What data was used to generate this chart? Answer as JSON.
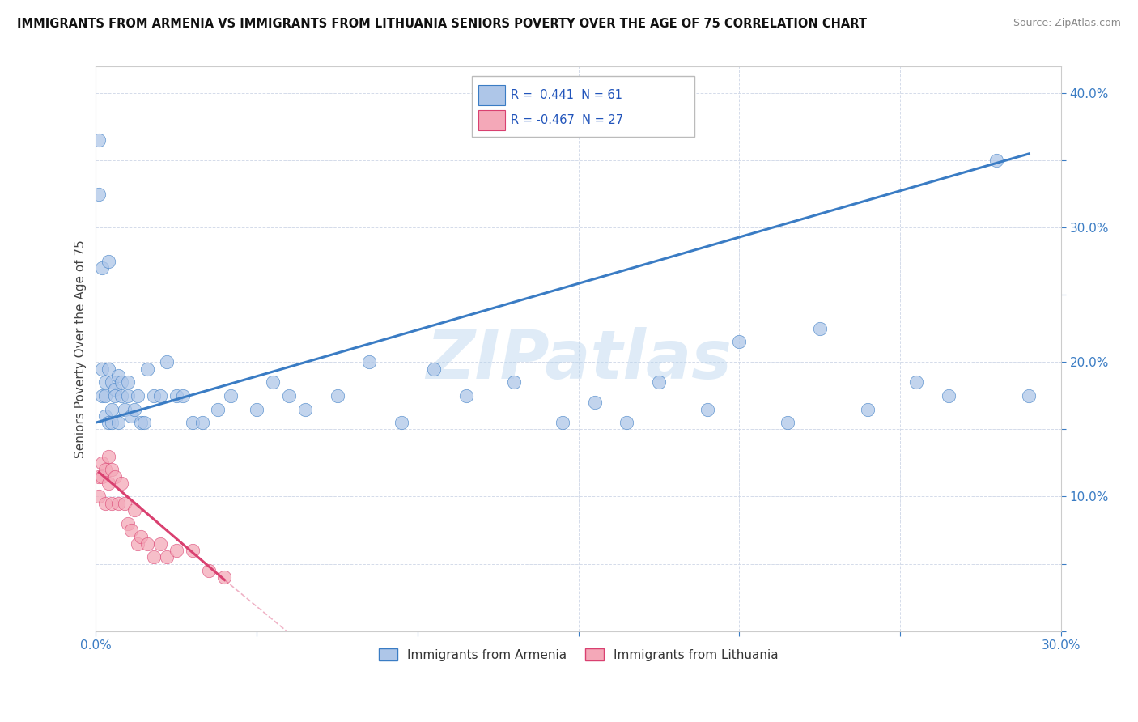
{
  "title": "IMMIGRANTS FROM ARMENIA VS IMMIGRANTS FROM LITHUANIA SENIORS POVERTY OVER THE AGE OF 75 CORRELATION CHART",
  "source": "Source: ZipAtlas.com",
  "ylabel": "Seniors Poverty Over the Age of 75",
  "watermark": "ZIPatlas",
  "legend_armenia": "Immigrants from Armenia",
  "legend_lithuania": "Immigrants from Lithuania",
  "R_armenia": 0.441,
  "N_armenia": 61,
  "R_lithuania": -0.467,
  "N_lithuania": 27,
  "xlim": [
    0.0,
    0.3
  ],
  "ylim": [
    0.0,
    0.42
  ],
  "color_armenia": "#aec6e8",
  "color_lithuania": "#f4a8b8",
  "line_color_armenia": "#3a7cc4",
  "line_color_lithuania": "#d94070",
  "background_color": "#ffffff",
  "armenia_x": [
    0.001,
    0.001,
    0.002,
    0.002,
    0.002,
    0.003,
    0.003,
    0.003,
    0.004,
    0.004,
    0.004,
    0.005,
    0.005,
    0.005,
    0.006,
    0.006,
    0.007,
    0.007,
    0.008,
    0.008,
    0.009,
    0.01,
    0.01,
    0.011,
    0.012,
    0.013,
    0.014,
    0.015,
    0.016,
    0.018,
    0.02,
    0.022,
    0.025,
    0.027,
    0.03,
    0.033,
    0.038,
    0.042,
    0.05,
    0.055,
    0.06,
    0.065,
    0.075,
    0.085,
    0.095,
    0.105,
    0.115,
    0.13,
    0.145,
    0.155,
    0.165,
    0.175,
    0.19,
    0.2,
    0.215,
    0.225,
    0.24,
    0.255,
    0.265,
    0.28,
    0.29
  ],
  "armenia_y": [
    0.365,
    0.325,
    0.175,
    0.195,
    0.27,
    0.16,
    0.185,
    0.175,
    0.155,
    0.195,
    0.275,
    0.165,
    0.185,
    0.155,
    0.18,
    0.175,
    0.19,
    0.155,
    0.175,
    0.185,
    0.165,
    0.185,
    0.175,
    0.16,
    0.165,
    0.175,
    0.155,
    0.155,
    0.195,
    0.175,
    0.175,
    0.2,
    0.175,
    0.175,
    0.155,
    0.155,
    0.165,
    0.175,
    0.165,
    0.185,
    0.175,
    0.165,
    0.175,
    0.2,
    0.155,
    0.195,
    0.175,
    0.185,
    0.155,
    0.17,
    0.155,
    0.185,
    0.165,
    0.215,
    0.155,
    0.225,
    0.165,
    0.185,
    0.175,
    0.35,
    0.175
  ],
  "lithuania_x": [
    0.001,
    0.001,
    0.002,
    0.002,
    0.003,
    0.003,
    0.004,
    0.004,
    0.005,
    0.005,
    0.006,
    0.007,
    0.008,
    0.009,
    0.01,
    0.011,
    0.012,
    0.013,
    0.014,
    0.016,
    0.018,
    0.02,
    0.022,
    0.025,
    0.03,
    0.035,
    0.04
  ],
  "lithuania_y": [
    0.115,
    0.1,
    0.125,
    0.115,
    0.12,
    0.095,
    0.13,
    0.11,
    0.095,
    0.12,
    0.115,
    0.095,
    0.11,
    0.095,
    0.08,
    0.075,
    0.09,
    0.065,
    0.07,
    0.065,
    0.055,
    0.065,
    0.055,
    0.06,
    0.06,
    0.045,
    0.04
  ],
  "line_armenia_x0": 0.0,
  "line_armenia_y0": 0.155,
  "line_armenia_x1": 0.29,
  "line_armenia_y1": 0.355,
  "line_lithuania_x0": 0.001,
  "line_lithuania_y0": 0.118,
  "line_lithuania_x1": 0.04,
  "line_lithuania_y1": 0.038
}
